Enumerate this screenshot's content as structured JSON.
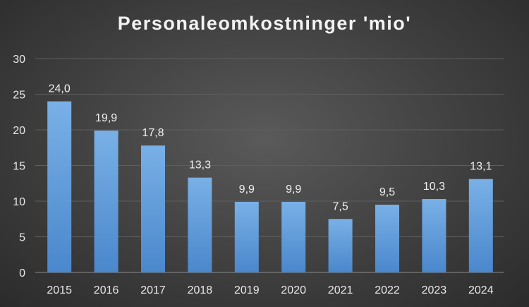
{
  "chart_data": {
    "type": "bar",
    "title": "Personaleomkostninger 'mio'",
    "categories": [
      "2015",
      "2016",
      "2017",
      "2018",
      "2019",
      "2020",
      "2021",
      "2022",
      "2023",
      "2024"
    ],
    "values": [
      24.0,
      19.9,
      17.8,
      13.3,
      9.9,
      9.9,
      7.5,
      9.5,
      10.3,
      13.1
    ],
    "data_labels": [
      "24,0",
      "19,9",
      "17,8",
      "13,3",
      "9,9",
      "9,9",
      "7,5",
      "9,5",
      "10,3",
      "13,1"
    ],
    "yticks": [
      "0",
      "5",
      "10",
      "15",
      "20",
      "25",
      "30"
    ],
    "ylim": [
      0,
      30
    ],
    "xlabel": "",
    "ylabel": "",
    "grid": true,
    "legend": "none",
    "bar_color_top": "#79b0e6",
    "bar_color_bottom": "#4a87cc"
  }
}
